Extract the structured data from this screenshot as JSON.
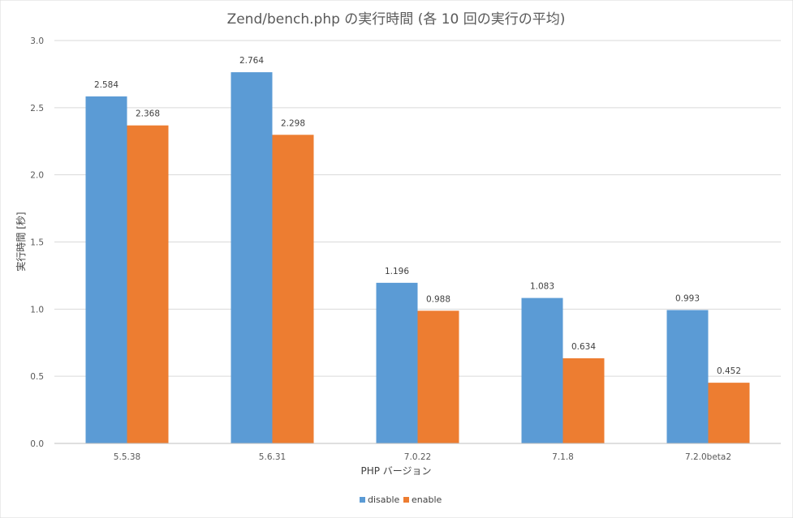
{
  "chart_data": {
    "type": "bar",
    "title": "Zend/bench.php の実行時間 (各 10 回の実行の平均)",
    "xlabel": "PHP バージョン",
    "ylabel": "実行時間 [秒]",
    "ylim": [
      0,
      3.0
    ],
    "yticks": [
      0.0,
      0.5,
      1.0,
      1.5,
      2.0,
      2.5,
      3.0
    ],
    "ytick_labels": [
      "0.0",
      "0.5",
      "1.0",
      "1.5",
      "2.0",
      "2.5",
      "3.0"
    ],
    "grid": true,
    "legend_position": "bottom",
    "categories": [
      "5.5.38",
      "5.6.31",
      "7.0.22",
      "7.1.8",
      "7.2.0beta2"
    ],
    "series": [
      {
        "name": "disable",
        "color": "#5B9BD5",
        "values": [
          2.584,
          2.764,
          1.196,
          1.083,
          0.993
        ],
        "labels": [
          "2.584",
          "2.764",
          "1.196",
          "1.083",
          "0.993"
        ]
      },
      {
        "name": "enable",
        "color": "#ED7D31",
        "values": [
          2.368,
          2.298,
          0.988,
          0.634,
          0.452
        ],
        "labels": [
          "2.368",
          "2.298",
          "0.988",
          "0.634",
          "0.452"
        ]
      }
    ]
  }
}
